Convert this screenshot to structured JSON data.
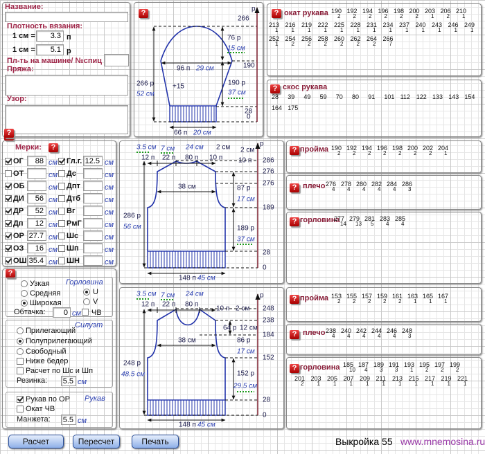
{
  "help_icon": "?",
  "header_panel": {
    "name_label": "Название:",
    "density_label": "Плотность вязания:",
    "rows": [
      {
        "label": "1 см =",
        "value": 3.3,
        "unit": "п"
      },
      {
        "label": "1 см =",
        "value": 5.1,
        "unit": "р"
      }
    ],
    "machine_label": "Пл-ть на машине/ №спиц",
    "yarn_label": "Пряжа:",
    "pattern_label": "Узор:"
  },
  "measures": {
    "title": "Мерки:",
    "unit": "см",
    "left": [
      {
        "label": "ОГ",
        "value": 88,
        "checked": true
      },
      {
        "label": "ОТ",
        "value": null,
        "checked": false
      },
      {
        "label": "ОБ",
        "value": null,
        "checked": true
      },
      {
        "label": "ДИ",
        "value": 56,
        "checked": true
      },
      {
        "label": "ДР",
        "value": 52,
        "checked": true
      },
      {
        "label": "Дп",
        "value": 12,
        "checked": true
      },
      {
        "label": "ОР",
        "value": 27.7,
        "checked": true
      },
      {
        "label": "ОЗ",
        "value": 16,
        "checked": true
      },
      {
        "label": "ОШ",
        "value": 35.4,
        "checked": true
      }
    ],
    "right": [
      {
        "label": "Гл.г.",
        "value": 12.5,
        "checked": true
      },
      {
        "label": "Дс",
        "value": null,
        "checked": false
      },
      {
        "label": "Дпт",
        "value": null,
        "checked": false
      },
      {
        "label": "Дтб",
        "value": null,
        "checked": false
      },
      {
        "label": "Вг",
        "value": null,
        "checked": false
      },
      {
        "label": "РмГ",
        "value": null,
        "checked": false
      },
      {
        "label": "Шс",
        "value": null,
        "checked": false
      },
      {
        "label": "Шп",
        "value": null,
        "checked": false
      },
      {
        "label": "ШН",
        "value": null,
        "checked": false
      }
    ]
  },
  "options": {
    "neckline": {
      "title": "Горловина",
      "widths": [
        "Узкая",
        "Средняя",
        "Широкая"
      ],
      "width_selected": 2,
      "shapes": [
        "U",
        "V"
      ],
      "shape_selected": 0,
      "facing_label": "Обтачка:",
      "facing_value": 0,
      "facing_unit": "см",
      "cv_label": "ЧВ",
      "cv_checked": false
    },
    "silhouette": {
      "title": "Силуэт",
      "options": [
        "Прилегающий",
        "Полуприлегающий",
        "Свободный"
      ],
      "selected": 1,
      "below_hips": {
        "label": "Ниже бедер",
        "checked": false
      },
      "by_widths": {
        "label": "Расчет по Шс и Шп",
        "checked": false
      },
      "rib_label": "Резинка:",
      "rib_value": 5.5,
      "rib_unit": "см"
    },
    "sleeve": {
      "title": "Рукав",
      "by_or": {
        "label": "Рукав по ОР",
        "checked": true
      },
      "cap_cv": {
        "label": "Окат ЧВ",
        "checked": false
      },
      "cuff_label": "Манжета:",
      "cuff_value": 5.5,
      "cuff_unit": "см"
    }
  },
  "buttons": [
    "Расчет",
    "Пересчет",
    "Печать"
  ],
  "footer": {
    "pattern": "Выкройка 55",
    "site": "www.mnemosina.ru"
  },
  "sleeve_diagram": {
    "labels": [
      "266",
      "р",
      "76 р",
      "15 см",
      "190",
      "96 п",
      "29 см",
      "+15",
      "266 р",
      "52 см",
      "190 р",
      "37 см",
      "28",
      "0",
      "66 п",
      "20 см"
    ]
  },
  "back_diagram": {
    "labels": [
      "3.5 см",
      "7 см",
      "24 см",
      "2 см",
      "2 см",
      "р",
      "12 п",
      "22 п",
      "80 п",
      "10 п",
      "10 п",
      "286",
      "276",
      "276",
      "38 см",
      "87 р",
      "17 см",
      "189",
      "286 р",
      "56 см",
      "189 р",
      "37 см",
      "28",
      "0",
      "148 п",
      "45 см"
    ]
  },
  "front_diagram": {
    "labels": [
      "3.5 см",
      "7 см",
      "24 см",
      "р",
      "12 п",
      "22 п",
      "80 п",
      "10 п",
      "2 см",
      "248",
      "238",
      "64 р",
      "12 см",
      "184",
      "38 см",
      "86 р",
      "17 см",
      "152",
      "248 р",
      "48.5 см",
      "152 р",
      "29.5 см",
      "28",
      "0",
      "148 п",
      "45 см"
    ]
  },
  "sleeve_cap": {
    "title": "окат рукава",
    "rows": [
      [
        [
          190,
          2
        ],
        [
          192,
          2
        ],
        [
          194,
          2
        ],
        [
          196,
          2
        ],
        [
          198,
          2
        ],
        [
          200,
          2
        ],
        [
          203,
          1
        ],
        [
          206,
          2
        ],
        [
          210,
          1
        ]
      ],
      [
        [
          213,
          1
        ],
        [
          216,
          1
        ],
        [
          219,
          1
        ],
        [
          222,
          1
        ],
        [
          225,
          1
        ],
        [
          228,
          1
        ],
        [
          231,
          1
        ],
        [
          234,
          1
        ],
        [
          237,
          1
        ],
        [
          240,
          1
        ],
        [
          243,
          1
        ],
        [
          246,
          1
        ],
        [
          249,
          1
        ]
      ],
      [
        [
          252,
          1
        ],
        [
          254,
          2
        ],
        [
          256,
          2
        ],
        [
          258,
          2
        ],
        [
          260,
          2
        ],
        [
          262,
          2
        ],
        [
          264,
          2
        ],
        [
          266,
          7
        ]
      ]
    ]
  },
  "sleeve_slope": {
    "title": "скос рукава",
    "rows": [
      [
        28,
        39,
        49,
        59,
        70,
        80,
        91,
        101,
        112,
        122,
        133,
        143,
        154
      ],
      [
        164,
        175
      ]
    ]
  },
  "back": {
    "armhole": {
      "title": "пройма",
      "rows": [
        [
          [
            190,
            2
          ],
          [
            192,
            2
          ],
          [
            194,
            2
          ],
          [
            196,
            2
          ],
          [
            198,
            2
          ],
          [
            200,
            2
          ],
          [
            202,
            2
          ],
          [
            204,
            1
          ]
        ]
      ]
    },
    "shoulder": {
      "title": "плечо",
      "rows": [
        [
          [
            276,
            4
          ],
          [
            278,
            4
          ],
          [
            280,
            4
          ],
          [
            282,
            4
          ],
          [
            284,
            4
          ],
          [
            286,
            3
          ]
        ]
      ]
    },
    "neckline": {
      "title": "горловина",
      "rows": [
        [
          [
            277,
            14
          ],
          [
            279,
            13
          ],
          [
            281,
            5
          ],
          [
            283,
            4
          ],
          [
            285,
            4
          ]
        ]
      ]
    }
  },
  "front": {
    "armhole": {
      "title": "пройма",
      "rows": [
        [
          [
            153,
            2
          ],
          [
            155,
            2
          ],
          [
            157,
            2
          ],
          [
            159,
            2
          ],
          [
            161,
            2
          ],
          [
            163,
            1
          ],
          [
            165,
            1
          ],
          [
            167,
            1
          ]
        ]
      ]
    },
    "shoulder": {
      "title": "плечо",
      "rows": [
        [
          [
            238,
            4
          ],
          [
            240,
            4
          ],
          [
            242,
            4
          ],
          [
            244,
            4
          ],
          [
            246,
            4
          ],
          [
            248,
            3
          ]
        ]
      ]
    },
    "neckline": {
      "title": "горловина",
      "rows": [
        [
          [
            185,
            10
          ],
          [
            187,
            4
          ],
          [
            189,
            3
          ],
          [
            191,
            3
          ],
          [
            193,
            1
          ],
          [
            195,
            2
          ],
          [
            197,
            2
          ],
          [
            199,
            2
          ]
        ],
        [
          [
            201,
            2
          ],
          [
            203,
            1
          ],
          [
            205,
            1
          ],
          [
            207,
            1
          ],
          [
            209,
            1
          ],
          [
            211,
            1
          ],
          [
            213,
            1
          ],
          [
            215,
            1
          ],
          [
            217,
            1
          ],
          [
            219,
            1
          ],
          [
            221,
            1
          ]
        ]
      ]
    }
  }
}
